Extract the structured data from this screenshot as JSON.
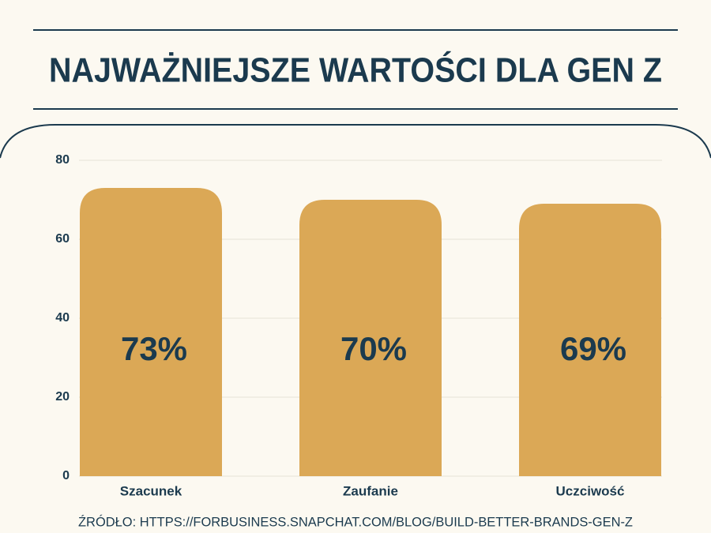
{
  "chart_data": {
    "type": "bar",
    "title": "NAJWAŻNIEJSZE WARTOŚCI DLA GEN Z",
    "categories": [
      "Szacunek",
      "Zaufanie",
      "Uczciwość"
    ],
    "values": [
      73,
      70,
      69
    ],
    "value_labels": [
      "73%",
      "70%",
      "69%"
    ],
    "color": "#dba856",
    "ylim": [
      0,
      80
    ],
    "yticks": [
      0,
      20,
      40,
      60,
      80
    ],
    "grid": true,
    "source": "ŹRÓDŁO: HTTPS://FORBUSINESS.SNAPCHAT.COM/BLOG/BUILD-BETTER-BRANDS-GEN-Z"
  }
}
